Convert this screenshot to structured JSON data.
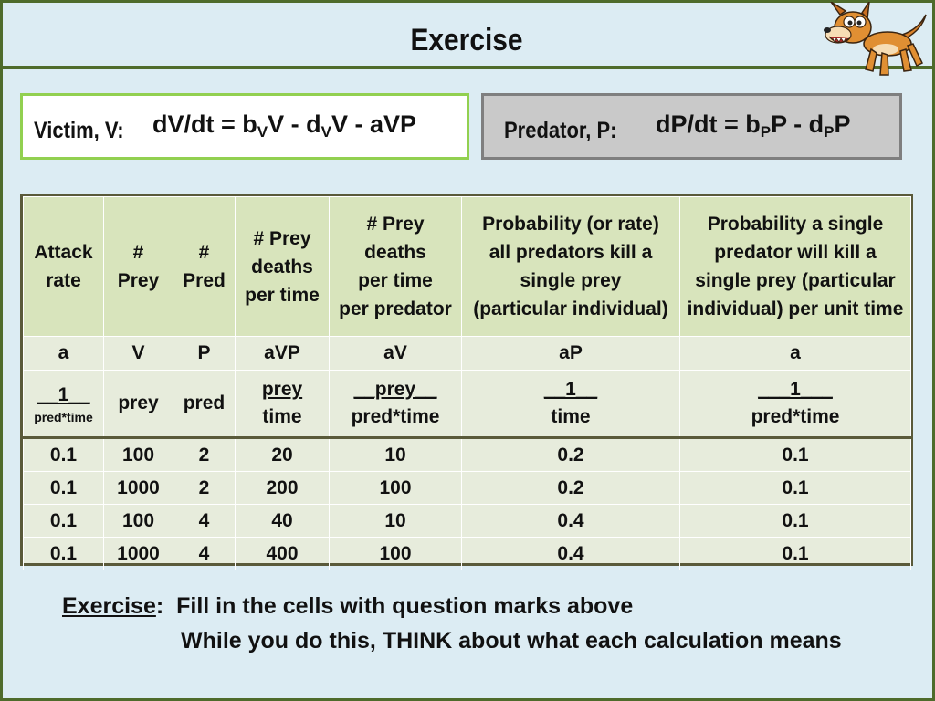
{
  "slide": {
    "title": "Exercise"
  },
  "victim": {
    "label": "Victim, V:",
    "eq_lhs": "dV/dt = b",
    "eq_sub1": "V",
    "eq_mid": "V - d",
    "eq_sub2": "V",
    "eq_end": "V - aVP"
  },
  "predator": {
    "label": "Predator, P:",
    "eq_lhs": "dP/dt = b",
    "eq_sub1": "P",
    "eq_mid": "P - d",
    "eq_sub2": "P",
    "eq_end": "P"
  },
  "table": {
    "headers": [
      [
        "Attack",
        "rate"
      ],
      [
        "#",
        "Prey"
      ],
      [
        "#",
        "Pred"
      ],
      [
        "# Prey",
        "deaths",
        "per time"
      ],
      [
        "# Prey",
        "deaths",
        "per time",
        "per predator"
      ],
      [
        "Probability (or rate)",
        "all predators kill a",
        "single prey",
        "(particular individual)"
      ],
      [
        "Probability a single",
        "predator will kill a",
        "single prey (particular",
        "individual) per unit time"
      ]
    ],
    "symbols": [
      "a",
      "V",
      "P",
      "aVP",
      "aV",
      "aP",
      "a"
    ],
    "units": [
      {
        "top": "__1__",
        "bottom": "pred*time"
      },
      {
        "top": "prey",
        "bottom": ""
      },
      {
        "top": "pred",
        "bottom": ""
      },
      {
        "top": "prey",
        "bottom": "time"
      },
      {
        "top": "__prey__",
        "bottom": "pred*time"
      },
      {
        "top": "__1__",
        "bottom": "time"
      },
      {
        "top": "___1___",
        "bottom": "pred*time"
      }
    ],
    "rows": [
      [
        "0.1",
        "100",
        "2",
        "20",
        "10",
        "0.2",
        "0.1"
      ],
      [
        "0.1",
        "1000",
        "2",
        "200",
        "100",
        "0.2",
        "0.1"
      ],
      [
        "0.1",
        "100",
        "4",
        "40",
        "10",
        "0.4",
        "0.1"
      ],
      [
        "0.1",
        "1000",
        "4",
        "400",
        "100",
        "0.4",
        "0.1"
      ]
    ]
  },
  "exercise": {
    "label": "Exercise",
    "colon": ":",
    "line1": "Fill in the cells with question marks above",
    "line2": "While you do this, THINK about what each calculation means"
  },
  "icons": {
    "mascot": "cartoon-dog-icon"
  },
  "colors": {
    "background": "#dcecf3",
    "frame": "#4e6b2b",
    "victim_border": "#92d050",
    "predator_fill": "#c9c9c9",
    "header_fill": "#d8e4bc",
    "body_fill": "#e7ecdc"
  }
}
